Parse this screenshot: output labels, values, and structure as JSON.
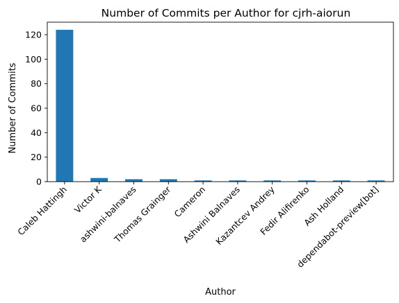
{
  "chart_data": {
    "type": "bar",
    "title": "Number of Commits per Author for cjrh-aiorun",
    "xlabel": "Author",
    "ylabel": "Number of Commits",
    "categories": [
      "Caleb Hattingh",
      "Victor K",
      "ashwini-balnaves",
      "Thomas Grainger",
      "Cameron",
      "Ashwini Balnaves",
      "Kazantcev Andrey",
      "Fedir Alifirenko",
      "Ash Holland",
      "dependabot-preview[bot]"
    ],
    "values": [
      124,
      3,
      2,
      2,
      1,
      1,
      1,
      1,
      1,
      1
    ],
    "ylim": [
      0,
      130.2
    ],
    "yticks": [
      0,
      20,
      40,
      60,
      80,
      100,
      120
    ],
    "bar_color": "#1f77b4",
    "grid": false,
    "legend": "none"
  }
}
